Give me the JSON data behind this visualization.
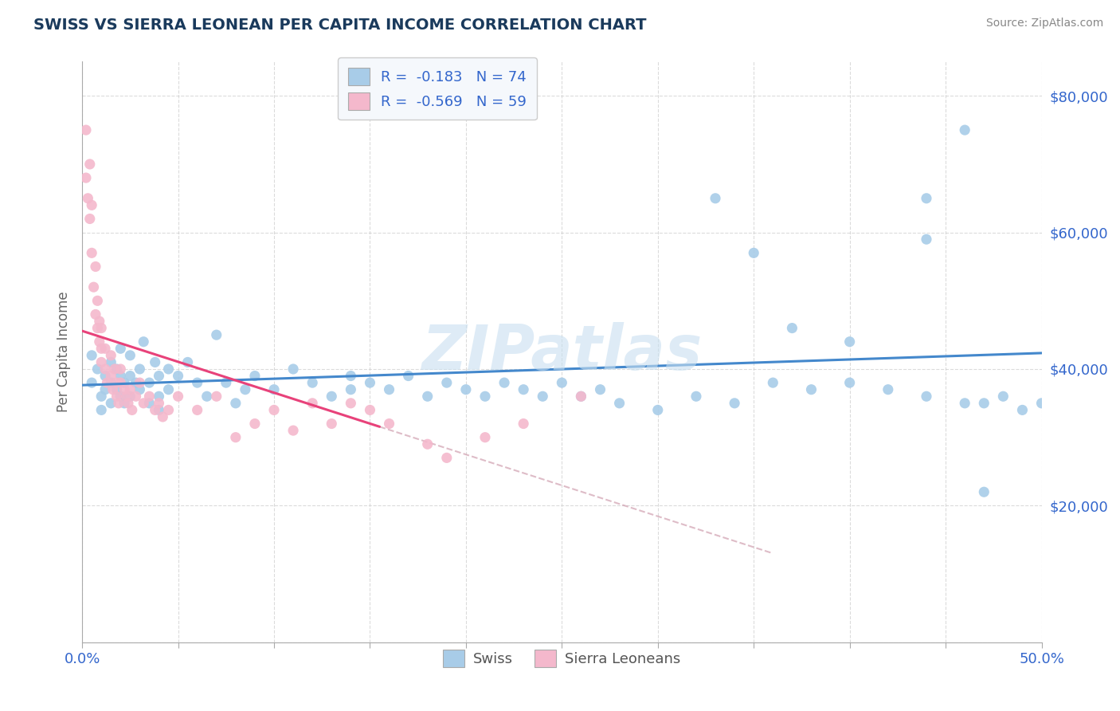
{
  "title": "SWISS VS SIERRA LEONEAN PER CAPITA INCOME CORRELATION CHART",
  "source": "Source: ZipAtlas.com",
  "ylabel": "Per Capita Income",
  "xlim": [
    0.0,
    0.5
  ],
  "ylim": [
    0,
    85000
  ],
  "xticks": [
    0.0,
    0.05,
    0.1,
    0.15,
    0.2,
    0.25,
    0.3,
    0.35,
    0.4,
    0.45,
    0.5
  ],
  "yticks": [
    0,
    20000,
    40000,
    60000,
    80000
  ],
  "swiss_R": -0.183,
  "swiss_N": 74,
  "sl_R": -0.569,
  "sl_N": 59,
  "swiss_color": "#a8cce8",
  "sl_color": "#f4b8cc",
  "swiss_line_color": "#4488cc",
  "sl_line_color": "#e8427a",
  "sl_line_dashed_color": "#d0a0b0",
  "title_color": "#1a3a5c",
  "tick_color": "#3366cc",
  "grid_color": "#cccccc",
  "watermark_color": "#c8dff0",
  "swiss_x": [
    0.005,
    0.005,
    0.008,
    0.01,
    0.01,
    0.012,
    0.012,
    0.015,
    0.015,
    0.015,
    0.018,
    0.018,
    0.02,
    0.02,
    0.02,
    0.022,
    0.022,
    0.025,
    0.025,
    0.025,
    0.028,
    0.03,
    0.03,
    0.032,
    0.035,
    0.035,
    0.038,
    0.04,
    0.04,
    0.04,
    0.045,
    0.045,
    0.05,
    0.055,
    0.06,
    0.065,
    0.07,
    0.075,
    0.08,
    0.085,
    0.09,
    0.1,
    0.11,
    0.12,
    0.13,
    0.14,
    0.14,
    0.15,
    0.16,
    0.17,
    0.18,
    0.19,
    0.2,
    0.21,
    0.22,
    0.23,
    0.24,
    0.25,
    0.26,
    0.27,
    0.28,
    0.3,
    0.32,
    0.34,
    0.36,
    0.38,
    0.4,
    0.42,
    0.44,
    0.46,
    0.47,
    0.48,
    0.49,
    0.5
  ],
  "swiss_y": [
    42000,
    38000,
    40000,
    36000,
    34000,
    39000,
    37000,
    41000,
    38000,
    35000,
    40000,
    37000,
    43000,
    39000,
    36000,
    38000,
    35000,
    42000,
    39000,
    36000,
    38000,
    40000,
    37000,
    44000,
    38000,
    35000,
    41000,
    39000,
    36000,
    34000,
    40000,
    37000,
    39000,
    41000,
    38000,
    36000,
    45000,
    38000,
    35000,
    37000,
    39000,
    37000,
    40000,
    38000,
    36000,
    39000,
    37000,
    38000,
    37000,
    39000,
    36000,
    38000,
    37000,
    36000,
    38000,
    37000,
    36000,
    38000,
    36000,
    37000,
    35000,
    34000,
    36000,
    35000,
    38000,
    37000,
    38000,
    37000,
    36000,
    35000,
    35000,
    36000,
    34000,
    35000
  ],
  "swiss_y_outliers_x": [
    0.33,
    0.35,
    0.37,
    0.4,
    0.44,
    0.44,
    0.46,
    0.47
  ],
  "swiss_y_outliers_y": [
    65000,
    57000,
    46000,
    44000,
    59000,
    65000,
    75000,
    22000
  ],
  "sl_x": [
    0.002,
    0.002,
    0.003,
    0.004,
    0.004,
    0.005,
    0.005,
    0.006,
    0.007,
    0.007,
    0.008,
    0.008,
    0.009,
    0.009,
    0.01,
    0.01,
    0.01,
    0.012,
    0.012,
    0.013,
    0.015,
    0.015,
    0.016,
    0.017,
    0.018,
    0.018,
    0.019,
    0.02,
    0.02,
    0.022,
    0.023,
    0.024,
    0.025,
    0.026,
    0.028,
    0.03,
    0.032,
    0.035,
    0.038,
    0.04,
    0.042,
    0.045,
    0.05,
    0.06,
    0.07,
    0.08,
    0.09,
    0.1,
    0.11,
    0.12,
    0.13,
    0.14,
    0.15,
    0.16,
    0.18,
    0.19,
    0.21,
    0.23,
    0.26
  ],
  "sl_y": [
    75000,
    68000,
    65000,
    62000,
    70000,
    57000,
    64000,
    52000,
    48000,
    55000,
    46000,
    50000,
    44000,
    47000,
    43000,
    46000,
    41000,
    40000,
    43000,
    38000,
    42000,
    39000,
    37000,
    40000,
    38000,
    36000,
    35000,
    38000,
    40000,
    37000,
    36000,
    35000,
    37000,
    34000,
    36000,
    38000,
    35000,
    36000,
    34000,
    35000,
    33000,
    34000,
    36000,
    34000,
    36000,
    30000,
    32000,
    34000,
    31000,
    35000,
    32000,
    35000,
    34000,
    32000,
    29000,
    27000,
    30000,
    32000,
    36000
  ]
}
